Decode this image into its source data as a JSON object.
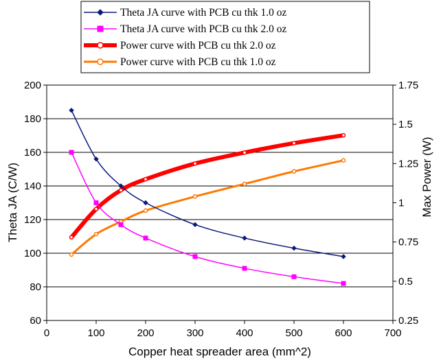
{
  "chart_data": {
    "type": "line",
    "x_axis": {
      "label": "Copper heat spreader area (mm^2)",
      "range": [
        0,
        700
      ],
      "ticks": [
        0,
        100,
        200,
        300,
        400,
        500,
        600,
        700
      ]
    },
    "y_left": {
      "label": "Theta JA (C/W)",
      "range": [
        60,
        200
      ],
      "ticks": [
        60,
        80,
        100,
        120,
        140,
        160,
        180,
        200
      ]
    },
    "y_right": {
      "label": "Max Power (W)",
      "range": [
        0.25,
        1.75
      ],
      "ticks": [
        "0.25",
        "0.5",
        "0.75",
        "1",
        "1.25",
        "1.5",
        "1.75"
      ]
    },
    "grid": {
      "horizontal": true,
      "vertical": false
    },
    "legend_position": "top",
    "series": [
      {
        "name": "Theta JA curve with PCB cu thk  1.0 oz",
        "axis": "left",
        "color": "#0a1a7a",
        "marker": "diamond",
        "x": [
          50,
          100,
          150,
          200,
          300,
          400,
          500,
          600
        ],
        "y": [
          185,
          156,
          140,
          130,
          117,
          109,
          103,
          98
        ]
      },
      {
        "name": "Theta JA curve with PCB cu thk  2.0 oz",
        "axis": "left",
        "color": "#ff00ff",
        "marker": "square",
        "x": [
          50,
          100,
          150,
          200,
          300,
          400,
          500,
          600
        ],
        "y": [
          160,
          130,
          117,
          109,
          98,
          91,
          86,
          82
        ]
      },
      {
        "name": "Power curve with PCB cu thk 2.0 oz",
        "axis": "right",
        "color": "#ff0000",
        "marker": "circle",
        "x": [
          50,
          100,
          150,
          200,
          300,
          400,
          500,
          600
        ],
        "y": [
          0.78,
          0.96,
          1.08,
          1.15,
          1.25,
          1.32,
          1.38,
          1.43
        ]
      },
      {
        "name": "Power curve with PCB cu thk 1.0 oz",
        "axis": "right",
        "color": "#ff7700",
        "marker": "circle",
        "x": [
          50,
          100,
          150,
          200,
          300,
          400,
          500,
          600
        ],
        "y": [
          0.67,
          0.8,
          0.88,
          0.95,
          1.04,
          1.12,
          1.2,
          1.27
        ]
      }
    ]
  }
}
